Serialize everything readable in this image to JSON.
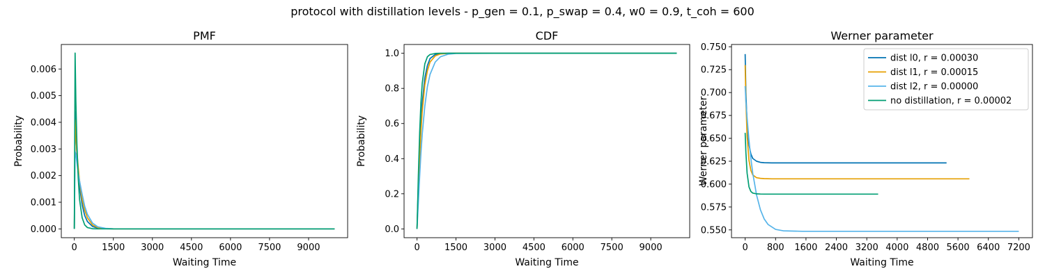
{
  "figure": {
    "title": "protocol with distillation levels - p_gen = 0.1, p_swap = 0.4, w0 = 0.9, t_coh = 600"
  },
  "chart_data": [
    {
      "type": "line",
      "title": "PMF",
      "xlabel": "Waiting Time",
      "ylabel": "Probability",
      "xlim": [
        -500,
        10500
      ],
      "ylim": [
        -0.00033,
        0.00692
      ],
      "xticks": [
        0,
        1500,
        3000,
        4500,
        6000,
        7500,
        9000
      ],
      "xtick_labels": [
        "0",
        "1500",
        "3000",
        "4500",
        "6000",
        "7500",
        "9000"
      ],
      "yticks": [
        0,
        0.001,
        0.002,
        0.003,
        0.004,
        0.005,
        0.006
      ],
      "ytick_labels": [
        "0.000",
        "0.001",
        "0.002",
        "0.003",
        "0.004",
        "0.005",
        "0.006"
      ],
      "series": [
        {
          "name": "dist l0",
          "color": "#0072B2",
          "x": [
            0,
            30,
            60,
            100,
            150,
            200,
            300,
            400,
            500,
            700,
            900,
            1200,
            1500,
            3000,
            6000,
            10000
          ],
          "y": [
            0,
            0.0044,
            0.0036,
            0.0028,
            0.0021,
            0.0016,
            0.0009,
            0.0005,
            0.00028,
            9e-05,
            3e-05,
            6e-06,
            0,
            0,
            0,
            0
          ]
        },
        {
          "name": "dist l1",
          "color": "#E69F00",
          "x": [
            0,
            30,
            60,
            100,
            150,
            200,
            300,
            400,
            500,
            700,
            900,
            1200,
            1500,
            3000,
            6000,
            10000
          ],
          "y": [
            0,
            0.0041,
            0.0035,
            0.0029,
            0.0023,
            0.0018,
            0.0011,
            0.0007,
            0.00042,
            0.00015,
            5e-05,
            1e-05,
            0,
            0,
            0,
            0
          ]
        },
        {
          "name": "dist l2",
          "color": "#56B4E9",
          "x": [
            0,
            30,
            60,
            100,
            150,
            200,
            300,
            400,
            500,
            700,
            900,
            1200,
            1500,
            3000,
            6000,
            10000
          ],
          "y": [
            0,
            0.0029,
            0.0028,
            0.0025,
            0.0021,
            0.0018,
            0.0013,
            0.00085,
            0.00055,
            0.00022,
            8e-05,
            2e-05,
            4e-06,
            0,
            0,
            0
          ]
        },
        {
          "name": "no distillation",
          "color": "#009E73",
          "x": [
            0,
            30,
            60,
            100,
            150,
            200,
            300,
            400,
            500,
            700,
            900,
            1200,
            1500,
            3000,
            6000,
            10000
          ],
          "y": [
            0,
            0.0066,
            0.0048,
            0.0032,
            0.0019,
            0.0011,
            0.00042,
            0.00015,
            5e-05,
            6e-06,
            0,
            0,
            0,
            0,
            0,
            0
          ]
        }
      ]
    },
    {
      "type": "line",
      "title": "CDF",
      "xlabel": "Waiting Time",
      "ylabel": "Probability",
      "xlim": [
        -500,
        10500
      ],
      "ylim": [
        -0.05,
        1.05
      ],
      "xticks": [
        0,
        1500,
        3000,
        4500,
        6000,
        7500,
        9000
      ],
      "xtick_labels": [
        "0",
        "1500",
        "3000",
        "4500",
        "6000",
        "7500",
        "9000"
      ],
      "yticks": [
        0,
        0.2,
        0.4,
        0.6,
        0.8,
        1.0
      ],
      "ytick_labels": [
        "0.0",
        "0.2",
        "0.4",
        "0.6",
        "0.8",
        "1.0"
      ],
      "series": [
        {
          "name": "dist l0",
          "color": "#0072B2",
          "x": [
            0,
            50,
            100,
            150,
            200,
            300,
            400,
            500,
            700,
            900,
            1200,
            1500,
            3000,
            6000,
            10000
          ],
          "y": [
            0,
            0.25,
            0.45,
            0.6,
            0.72,
            0.86,
            0.93,
            0.97,
            0.993,
            0.998,
            1,
            1,
            1,
            1,
            1
          ]
        },
        {
          "name": "dist l1",
          "color": "#E69F00",
          "x": [
            0,
            50,
            100,
            150,
            200,
            300,
            400,
            500,
            700,
            900,
            1200,
            1500,
            3000,
            6000,
            10000
          ],
          "y": [
            0,
            0.22,
            0.4,
            0.55,
            0.67,
            0.82,
            0.9,
            0.95,
            0.985,
            0.996,
            0.999,
            1,
            1,
            1,
            1
          ]
        },
        {
          "name": "dist l2",
          "color": "#56B4E9",
          "x": [
            0,
            50,
            100,
            150,
            200,
            300,
            400,
            500,
            700,
            900,
            1200,
            1500,
            3000,
            6000,
            10000
          ],
          "y": [
            0,
            0.15,
            0.3,
            0.43,
            0.54,
            0.7,
            0.81,
            0.88,
            0.95,
            0.98,
            0.995,
            0.999,
            1,
            1,
            1
          ]
        },
        {
          "name": "no distillation",
          "color": "#009E73",
          "x": [
            0,
            50,
            100,
            150,
            200,
            300,
            400,
            500,
            700,
            900,
            1200,
            1500,
            3000,
            6000,
            10000
          ],
          "y": [
            0,
            0.3,
            0.55,
            0.72,
            0.83,
            0.94,
            0.98,
            0.993,
            0.999,
            1,
            1,
            1,
            1,
            1,
            1
          ]
        }
      ]
    },
    {
      "type": "line",
      "title": "Werner parameter",
      "xlabel": "Waiting Time",
      "ylabel": "Werner parameter",
      "xlim": [
        -360,
        7560
      ],
      "ylim": [
        0.5415,
        0.7525
      ],
      "xticks": [
        0,
        800,
        1600,
        2400,
        3200,
        4000,
        4800,
        5600,
        6400,
        7200
      ],
      "xtick_labels": [
        "0",
        "800",
        "1600",
        "2400",
        "3200",
        "4000",
        "4800",
        "5600",
        "6400",
        "7200"
      ],
      "yticks": [
        0.55,
        0.575,
        0.6,
        0.625,
        0.65,
        0.675,
        0.7,
        0.725,
        0.75
      ],
      "ytick_labels": [
        "0.550",
        "0.575",
        "0.600",
        "0.625",
        "0.650",
        "0.675",
        "0.700",
        "0.725",
        "0.750"
      ],
      "legend_position": "top-right",
      "series": [
        {
          "name": "dist l0",
          "legend": "dist l0, r = 0.00030",
          "color": "#0072B2",
          "x": [
            0,
            20,
            50,
            100,
            150,
            200,
            300,
            400,
            500,
            700,
            1000,
            5300
          ],
          "y": [
            0.742,
            0.7,
            0.665,
            0.643,
            0.633,
            0.628,
            0.625,
            0.6238,
            0.6234,
            0.6232,
            0.6232,
            0.6232
          ]
        },
        {
          "name": "dist l1",
          "legend": "dist l1, r = 0.00015",
          "color": "#E69F00",
          "x": [
            0,
            20,
            50,
            100,
            150,
            200,
            300,
            400,
            500,
            700,
            1000,
            5900
          ],
          "y": [
            0.73,
            0.69,
            0.652,
            0.626,
            0.615,
            0.61,
            0.607,
            0.6063,
            0.606,
            0.6058,
            0.6058,
            0.6058
          ]
        },
        {
          "name": "dist l2",
          "legend": "dist l2, r = 0.00000",
          "color": "#56B4E9",
          "x": [
            0,
            20,
            50,
            100,
            150,
            200,
            300,
            400,
            500,
            600,
            800,
            1000,
            1500,
            7200
          ],
          "y": [
            0.707,
            0.69,
            0.672,
            0.648,
            0.628,
            0.612,
            0.588,
            0.572,
            0.562,
            0.556,
            0.5505,
            0.549,
            0.5485,
            0.5485
          ]
        },
        {
          "name": "no distillation",
          "legend": "no distillation, r = 0.00002",
          "color": "#009E73",
          "x": [
            0,
            20,
            50,
            100,
            150,
            200,
            300,
            400,
            500,
            700,
            3500
          ],
          "y": [
            0.656,
            0.634,
            0.612,
            0.597,
            0.592,
            0.5902,
            0.5894,
            0.5892,
            0.5891,
            0.5891,
            0.5891
          ]
        }
      ]
    }
  ]
}
